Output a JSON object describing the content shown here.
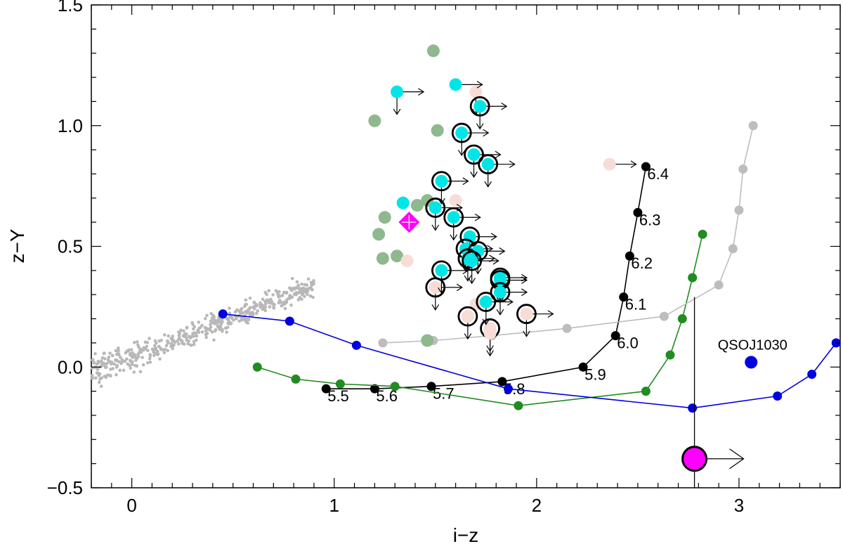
{
  "chart_data": {
    "type": "scatter",
    "title": "",
    "xlabel": "i−z",
    "ylabel": "z−Y",
    "xlim": [
      -0.2,
      3.5
    ],
    "ylim": [
      -0.5,
      1.5
    ],
    "xticks": [
      {
        "value": 0,
        "label": "0"
      },
      {
        "value": 1,
        "label": "1"
      },
      {
        "value": 2,
        "label": "2"
      },
      {
        "value": 3,
        "label": "3"
      }
    ],
    "yticks": [
      {
        "value": -0.5,
        "label": "−0.5"
      },
      {
        "value": 0.0,
        "label": "0.0"
      },
      {
        "value": 0.5,
        "label": "0.5"
      },
      {
        "value": 1.0,
        "label": "1.0"
      },
      {
        "value": 1.5,
        "label": "1.5"
      }
    ],
    "colors": {
      "stars": "#b8b8b8",
      "cyan": "#00e6e6",
      "green": "#8fb88f",
      "pink": "#f8dcd6",
      "magenta": "#ff00ff",
      "track_black": "#000000",
      "track_green": "#228b22",
      "track_blue": "#0000e0",
      "track_gray": "#bdbdbd"
    },
    "tracks": [
      {
        "name": "black-track",
        "color": "#000000",
        "points": [
          [
            0.96,
            -0.09
          ],
          [
            1.2,
            -0.09
          ],
          [
            1.48,
            -0.08
          ],
          [
            1.83,
            -0.06
          ],
          [
            2.23,
            0.0
          ],
          [
            2.39,
            0.13
          ],
          [
            2.43,
            0.29
          ],
          [
            2.46,
            0.46
          ],
          [
            2.5,
            0.64
          ],
          [
            2.54,
            0.83
          ]
        ],
        "labels": [
          "5.5",
          "5.6",
          "5.7",
          "5.8",
          "5.9",
          "6.0",
          "6.1",
          "6.2",
          "6.3",
          "6.4"
        ]
      },
      {
        "name": "green-track",
        "color": "#228b22",
        "points": [
          [
            0.62,
            0.0
          ],
          [
            0.81,
            -0.05
          ],
          [
            1.03,
            -0.07
          ],
          [
            1.3,
            -0.08
          ],
          [
            1.91,
            -0.16
          ],
          [
            2.54,
            -0.1
          ],
          [
            2.66,
            0.05
          ],
          [
            2.72,
            0.2
          ],
          [
            2.77,
            0.37
          ],
          [
            2.82,
            0.55
          ]
        ]
      },
      {
        "name": "blue-track",
        "color": "#0000e0",
        "points": [
          [
            0.45,
            0.22
          ],
          [
            0.78,
            0.19
          ],
          [
            1.11,
            0.09
          ],
          [
            1.86,
            -0.09
          ],
          [
            2.77,
            -0.17
          ],
          [
            3.19,
            -0.12
          ],
          [
            3.36,
            -0.03
          ],
          [
            3.48,
            0.1
          ]
        ]
      },
      {
        "name": "gray-track",
        "color": "#bdbdbd",
        "points": [
          [
            1.24,
            0.1
          ],
          [
            1.49,
            0.11
          ],
          [
            1.78,
            0.13
          ],
          [
            2.15,
            0.16
          ],
          [
            2.63,
            0.21
          ],
          [
            2.9,
            0.34
          ],
          [
            2.97,
            0.49
          ],
          [
            3.0,
            0.65
          ],
          [
            3.02,
            0.82
          ],
          [
            3.07,
            1.0
          ]
        ]
      }
    ],
    "cyan_points": [
      {
        "x": 1.31,
        "y": 1.14,
        "ring": false,
        "lim": [
          "right",
          "down"
        ]
      },
      {
        "x": 1.6,
        "y": 1.17,
        "ring": false,
        "lim": [
          "right"
        ]
      },
      {
        "x": 1.72,
        "y": 1.08,
        "ring": true,
        "lim": [
          "right",
          "down"
        ]
      },
      {
        "x": 1.63,
        "y": 0.97,
        "ring": true,
        "lim": [
          "right",
          "down"
        ]
      },
      {
        "x": 1.69,
        "y": 0.88,
        "ring": true,
        "lim": [
          "right",
          "down"
        ]
      },
      {
        "x": 1.76,
        "y": 0.84,
        "ring": true,
        "lim": [
          "right",
          "down"
        ]
      },
      {
        "x": 1.53,
        "y": 0.77,
        "ring": true,
        "lim": [
          "right",
          "down"
        ]
      },
      {
        "x": 1.34,
        "y": 0.68,
        "ring": false,
        "lim": []
      },
      {
        "x": 1.5,
        "y": 0.66,
        "ring": true,
        "lim": [
          "right",
          "down"
        ]
      },
      {
        "x": 1.59,
        "y": 0.62,
        "ring": true,
        "lim": [
          "right",
          "down"
        ]
      },
      {
        "x": 1.67,
        "y": 0.54,
        "ring": true,
        "lim": [
          "right",
          "down"
        ]
      },
      {
        "x": 1.65,
        "y": 0.49,
        "ring": true,
        "lim": [
          "right",
          "down"
        ]
      },
      {
        "x": 1.71,
        "y": 0.48,
        "ring": true,
        "lim": [
          "right",
          "down"
        ]
      },
      {
        "x": 1.66,
        "y": 0.45,
        "ring": true,
        "lim": [
          "right",
          "down"
        ]
      },
      {
        "x": 1.68,
        "y": 0.44,
        "ring": true,
        "lim": [
          "right",
          "down"
        ]
      },
      {
        "x": 1.53,
        "y": 0.4,
        "ring": true,
        "lim": [
          "right",
          "down"
        ]
      },
      {
        "x": 1.82,
        "y": 0.37,
        "ring": true,
        "lim": [
          "right",
          "down"
        ]
      },
      {
        "x": 1.82,
        "y": 0.36,
        "ring": true,
        "lim": [
          "right",
          "down"
        ]
      },
      {
        "x": 1.82,
        "y": 0.31,
        "ring": true,
        "lim": [
          "right",
          "down"
        ]
      },
      {
        "x": 1.75,
        "y": 0.27,
        "ring": true,
        "lim": [
          "right",
          "down"
        ]
      }
    ],
    "pink_points": [
      {
        "x": 1.7,
        "y": 1.14,
        "ring": false,
        "lim": [
          "down"
        ]
      },
      {
        "x": 2.36,
        "y": 0.84,
        "ring": false,
        "lim": [
          "right"
        ]
      },
      {
        "x": 1.6,
        "y": 0.69,
        "ring": false,
        "lim": []
      },
      {
        "x": 1.36,
        "y": 0.44,
        "ring": false,
        "lim": []
      },
      {
        "x": 1.5,
        "y": 0.33,
        "ring": true,
        "lim": [
          "right",
          "down"
        ]
      },
      {
        "x": 1.7,
        "y": 0.26,
        "ring": false,
        "lim": []
      },
      {
        "x": 1.66,
        "y": 0.21,
        "ring": true,
        "lim": [
          "down"
        ]
      },
      {
        "x": 1.95,
        "y": 0.22,
        "ring": true,
        "lim": [
          "right",
          "down"
        ]
      },
      {
        "x": 1.77,
        "y": 0.16,
        "ring": true,
        "lim": [
          "down"
        ]
      },
      {
        "x": 1.77,
        "y": 0.14,
        "ring": false,
        "lim": [
          "down"
        ]
      }
    ],
    "green_points": [
      {
        "x": 1.49,
        "y": 1.31
      },
      {
        "x": 1.2,
        "y": 1.02
      },
      {
        "x": 1.51,
        "y": 0.98
      },
      {
        "x": 1.46,
        "y": 0.69
      },
      {
        "x": 1.41,
        "y": 0.67
      },
      {
        "x": 1.25,
        "y": 0.62
      },
      {
        "x": 1.22,
        "y": 0.55
      },
      {
        "x": 1.24,
        "y": 0.45
      },
      {
        "x": 1.31,
        "y": 0.46
      },
      {
        "x": 1.46,
        "y": 0.11
      }
    ],
    "stars_scatter": {
      "description": "field star locus (gray points), roughly z-Y = 0.04 + 0.33*(i-z)",
      "x_range": [
        -0.2,
        0.9
      ],
      "count": 500
    },
    "highlighted_objects": [
      {
        "name": "magenta-diamond",
        "x": 1.37,
        "y": 0.6,
        "marker": "diamond",
        "color": "#ff00ff"
      },
      {
        "name": "magenta-circle",
        "x": 2.78,
        "y": -0.38,
        "marker": "circle",
        "color": "#ff00ff",
        "lim": [
          "right"
        ],
        "vertical_line_to_y": 0.29
      }
    ],
    "annotations": [
      {
        "text": "QSOJ1030",
        "x": 3.06,
        "y": 0.02,
        "marker": "circle",
        "color": "#0000e0"
      }
    ]
  }
}
